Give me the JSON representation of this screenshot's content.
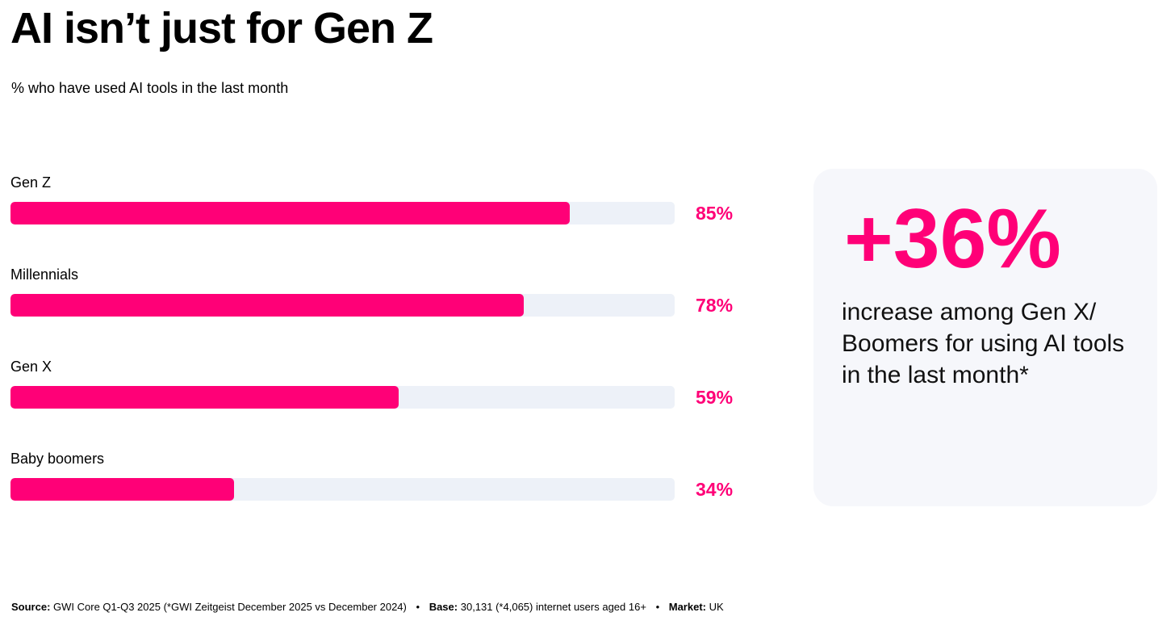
{
  "title": "AI isn’t just for Gen Z",
  "subtitle": "% who have used AI tools in the last month",
  "chart_data": {
    "type": "bar",
    "orientation": "horizontal",
    "categories": [
      "Gen Z",
      "Millennials",
      "Gen X",
      "Baby boomers"
    ],
    "values": [
      85,
      78,
      59,
      34
    ],
    "value_labels": [
      "85%",
      "78%",
      "59%",
      "34%"
    ],
    "unit": "%",
    "title": "% who have used AI tools in the last month",
    "xlim": [
      0,
      100
    ],
    "bar_color": "#ff0077",
    "track_color": "#edf1f8"
  },
  "stat": {
    "value": "+36%",
    "text": "increase among Gen X/ Boomers for using AI tools in the last month*"
  },
  "footer": {
    "source_label": "Source:",
    "source_text": "GWI Core Q1-Q3 2025 (*GWI Zeitgeist December 2025 vs December 2024)",
    "base_label": "Base:",
    "base_text": "30,131 (*4,065) internet users aged 16+",
    "market_label": "Market:",
    "market_text": "UK",
    "separator": "•"
  },
  "colors": {
    "accent": "#ff0077",
    "card_bg": "#f6f7fb"
  }
}
